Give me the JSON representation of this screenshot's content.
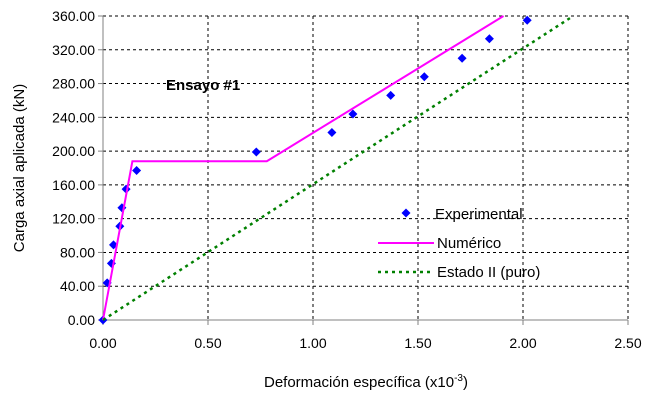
{
  "chart_data": {
    "type": "scatter",
    "xlabel": "Deformación específica (x10",
    "xlabel_exp": "-3",
    "xlabel_tail": ")",
    "ylabel": "Carga axial aplicada (kN)",
    "annotation": "Ensayo #1",
    "xlim": [
      0,
      2.5
    ],
    "ylim": [
      0,
      360
    ],
    "x_ticks": [
      0,
      0.5,
      1.0,
      1.5,
      2.0,
      2.5
    ],
    "x_tick_labels": [
      "0.00",
      "0.50",
      "1.00",
      "1.50",
      "2.00",
      "2.50"
    ],
    "y_ticks": [
      0,
      40,
      80,
      120,
      160,
      200,
      240,
      280,
      320,
      360
    ],
    "y_tick_labels": [
      "0.00",
      "40.00",
      "80.00",
      "120.00",
      "160.00",
      "200.00",
      "240.00",
      "280.00",
      "320.00",
      "360.00"
    ],
    "grid": true,
    "legend_position": "lower-right",
    "series": [
      {
        "name": "Experimental",
        "style": "markers",
        "marker": "diamond",
        "color": "#0000ff",
        "x": [
          0.0,
          0.02,
          0.04,
          0.05,
          0.08,
          0.09,
          0.11,
          0.16,
          0.73,
          1.09,
          1.19,
          1.37,
          1.53,
          1.71,
          1.84,
          2.02
        ],
        "y": [
          0,
          44,
          67,
          89,
          111,
          133,
          155,
          177,
          199,
          222,
          244,
          266,
          288,
          310,
          333,
          355
        ]
      },
      {
        "name": "Numérico",
        "style": "solid",
        "color": "#ff00ff",
        "x": [
          0.0,
          0.14,
          0.78,
          1.94
        ],
        "y": [
          0,
          188,
          188,
          365
        ]
      },
      {
        "name": "Estado II (puro)",
        "style": "dotted",
        "color": "#008000",
        "x": [
          0.0,
          2.27
        ],
        "y": [
          0,
          365
        ]
      }
    ]
  }
}
